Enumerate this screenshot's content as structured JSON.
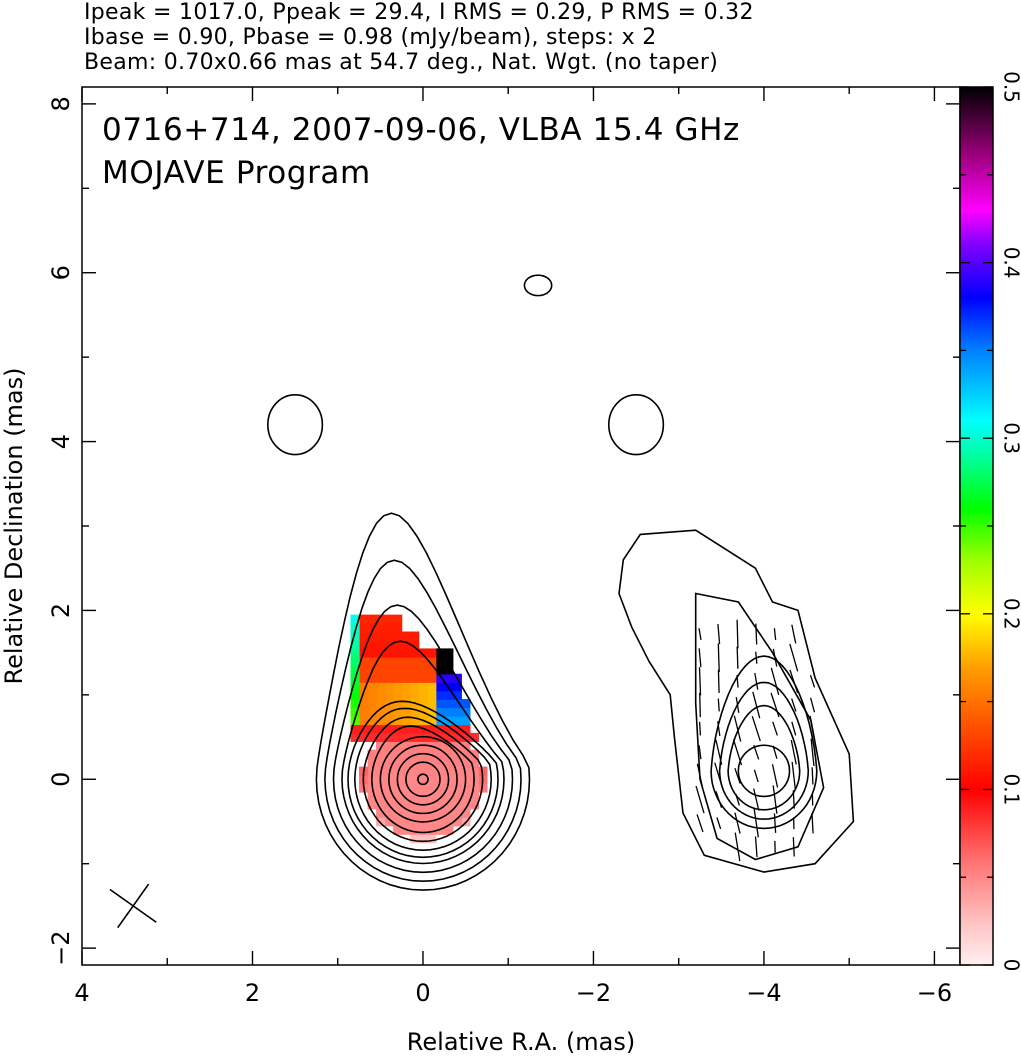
{
  "header": {
    "line1": "Ipeak = 1017.0, Ppeak = 29.4, I RMS = 0.29, P RMS = 0.32",
    "line2": "Ibase = 0.90, Pbase = 0.98 (mJy/beam), steps: x 2",
    "line3": "Beam: 0.70x0.66 mas at 54.7 deg., Nat. Wgt. (no taper)"
  },
  "chart_data": {
    "type": "contour",
    "title": "0716+714, 2007-09-06, VLBA 15.4 GHz",
    "subtitle": "MOJAVE Program",
    "xlabel": "Relative R.A. (mas)",
    "ylabel": "Relative Declination (mas)",
    "xlim": [
      4.0,
      -6.3
    ],
    "ylim": [
      -2.2,
      8.2
    ],
    "x_ticks": [
      "4",
      "2",
      "0",
      "−2",
      "−4",
      "−6"
    ],
    "x_tick_values": [
      4,
      2,
      0,
      -2,
      -4,
      -6
    ],
    "y_ticks": [
      "−2",
      "0",
      "2",
      "4",
      "6",
      "8"
    ],
    "y_tick_values": [
      -2,
      0,
      2,
      4,
      6,
      8
    ],
    "colorbar": {
      "min": 0,
      "max": 0.5,
      "ticks": [
        "0",
        "0.1",
        "0.2",
        "0.3",
        "0.4",
        "0.5"
      ],
      "tick_values": [
        0,
        0.1,
        0.2,
        0.3,
        0.4,
        0.5
      ]
    },
    "left_panel": {
      "core_center": [
        0,
        0
      ],
      "contour_radii": [
        0.5,
        0.62,
        0.74,
        0.86,
        0.98
      ],
      "frac_pol_cells": [
        {
          "x": 0.0,
          "y": 0.0,
          "v": 0.05
        },
        {
          "x": 0.4,
          "y": 0.6,
          "v": 0.08
        },
        {
          "x": 0.5,
          "y": 1.2,
          "v": 0.14
        },
        {
          "x": 0.6,
          "y": 1.6,
          "v": 0.11
        },
        {
          "x": 0.75,
          "y": 0.95,
          "v": 0.28
        },
        {
          "x": -0.35,
          "y": 1.45,
          "v": 0.5
        }
      ]
    },
    "right_panel": {
      "core_center": [
        -4.0,
        0.1
      ],
      "evpa_deg": 10
    },
    "islands": [
      {
        "x": 1.5,
        "y": 4.2
      },
      {
        "x": -2.5,
        "y": 4.2
      },
      {
        "x": -1.35,
        "y": 5.85
      }
    ],
    "beam": {
      "major": 0.7,
      "minor": 0.66,
      "pa_deg": 54.7,
      "x": 3.4,
      "y": -1.5
    }
  }
}
